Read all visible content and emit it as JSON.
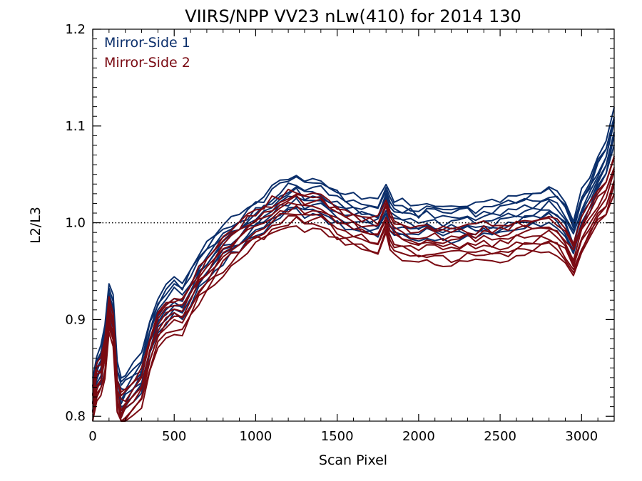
{
  "chart_data": {
    "type": "line",
    "title": "VIIRS/NPP VV23 nLw(410) for 2014 130",
    "xlabel": "Scan Pixel",
    "ylabel": "L2/L3",
    "xlim": [
      0,
      3200
    ],
    "ylim": [
      0.795,
      1.2
    ],
    "x_ticks": [
      0,
      500,
      1000,
      1500,
      2000,
      2500,
      3000
    ],
    "y_ticks": [
      0.8,
      0.9,
      1.0,
      1.1,
      1.2
    ],
    "x_tick_labels": [
      "0",
      "500",
      "1000",
      "1500",
      "2000",
      "2500",
      "3000"
    ],
    "y_tick_labels": [
      "0.8",
      "0.9",
      "1.0",
      "1.1",
      "1.2"
    ],
    "reference_line": {
      "y": 1.0,
      "style": "dotted"
    },
    "legend_position": "top-left",
    "x": [
      0,
      25,
      50,
      75,
      100,
      125,
      150,
      175,
      200,
      250,
      300,
      350,
      400,
      450,
      500,
      550,
      600,
      650,
      700,
      750,
      800,
      850,
      900,
      950,
      1000,
      1050,
      1100,
      1150,
      1200,
      1250,
      1300,
      1350,
      1400,
      1450,
      1500,
      1550,
      1600,
      1650,
      1700,
      1750,
      1800,
      1825,
      1850,
      1900,
      1950,
      2000,
      2050,
      2100,
      2150,
      2200,
      2250,
      2300,
      2350,
      2400,
      2450,
      2500,
      2550,
      2600,
      2650,
      2700,
      2750,
      2800,
      2850,
      2900,
      2950,
      3000,
      3050,
      3100,
      3150,
      3200
    ],
    "series": [
      {
        "name": "Mirror-Side 1",
        "color": "#0b2f6b",
        "values": [
          0.82,
          0.845,
          0.855,
          0.88,
          0.915,
          0.905,
          0.835,
          0.82,
          0.825,
          0.835,
          0.845,
          0.88,
          0.905,
          0.915,
          0.925,
          0.92,
          0.935,
          0.95,
          0.96,
          0.97,
          0.978,
          0.985,
          0.99,
          0.998,
          1.005,
          1.01,
          1.018,
          1.024,
          1.03,
          1.032,
          1.026,
          1.03,
          1.026,
          1.02,
          1.016,
          1.012,
          1.01,
          1.008,
          1.006,
          1.005,
          1.025,
          1.01,
          1.006,
          1.004,
          1.002,
          1.0,
          1.004,
          1.002,
          1.0,
          1.0,
          1.002,
          1.003,
          1.0,
          1.004,
          1.003,
          1.006,
          1.008,
          1.01,
          1.012,
          1.014,
          1.016,
          1.02,
          1.015,
          1.005,
          0.985,
          1.015,
          1.03,
          1.05,
          1.065,
          1.1
        ]
      },
      {
        "name": "Mirror-Side 2",
        "color": "#7a0a12",
        "values": [
          0.81,
          0.835,
          0.84,
          0.86,
          0.905,
          0.89,
          0.82,
          0.805,
          0.81,
          0.82,
          0.83,
          0.865,
          0.89,
          0.9,
          0.905,
          0.905,
          0.92,
          0.935,
          0.945,
          0.958,
          0.966,
          0.975,
          0.982,
          0.99,
          0.996,
          1.0,
          1.006,
          1.01,
          1.014,
          1.016,
          1.01,
          1.014,
          1.012,
          1.006,
          1.0,
          0.996,
          0.994,
          0.99,
          0.988,
          0.986,
          1.005,
          0.99,
          0.985,
          0.982,
          0.978,
          0.976,
          0.978,
          0.978,
          0.976,
          0.976,
          0.978,
          0.98,
          0.978,
          0.98,
          0.978,
          0.98,
          0.982,
          0.984,
          0.985,
          0.986,
          0.988,
          0.99,
          0.985,
          0.975,
          0.96,
          0.985,
          1.0,
          1.015,
          1.025,
          1.05
        ]
      }
    ]
  }
}
